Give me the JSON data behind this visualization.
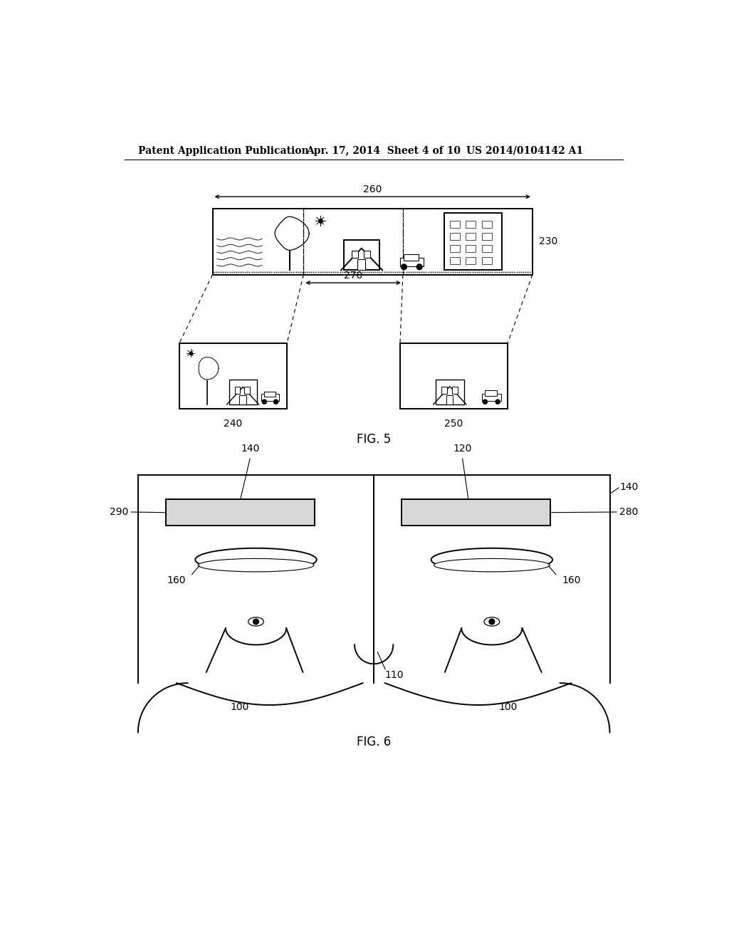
{
  "background_color": "#ffffff",
  "header_left": "Patent Application Publication",
  "header_mid": "Apr. 17, 2014  Sheet 4 of 10",
  "header_right": "US 2014/0104142 A1",
  "fig5_label": "FIG. 5",
  "fig6_label": "FIG. 6",
  "label_230": "230",
  "label_240": "240",
  "label_250": "250",
  "label_260": "260",
  "label_270": "270",
  "label_140a": "140",
  "label_120": "120",
  "label_140b": "140",
  "label_280": "280",
  "label_290": "290",
  "label_160a": "160",
  "label_160b": "160",
  "label_110": "110",
  "label_100a": "100",
  "label_100b": "100"
}
